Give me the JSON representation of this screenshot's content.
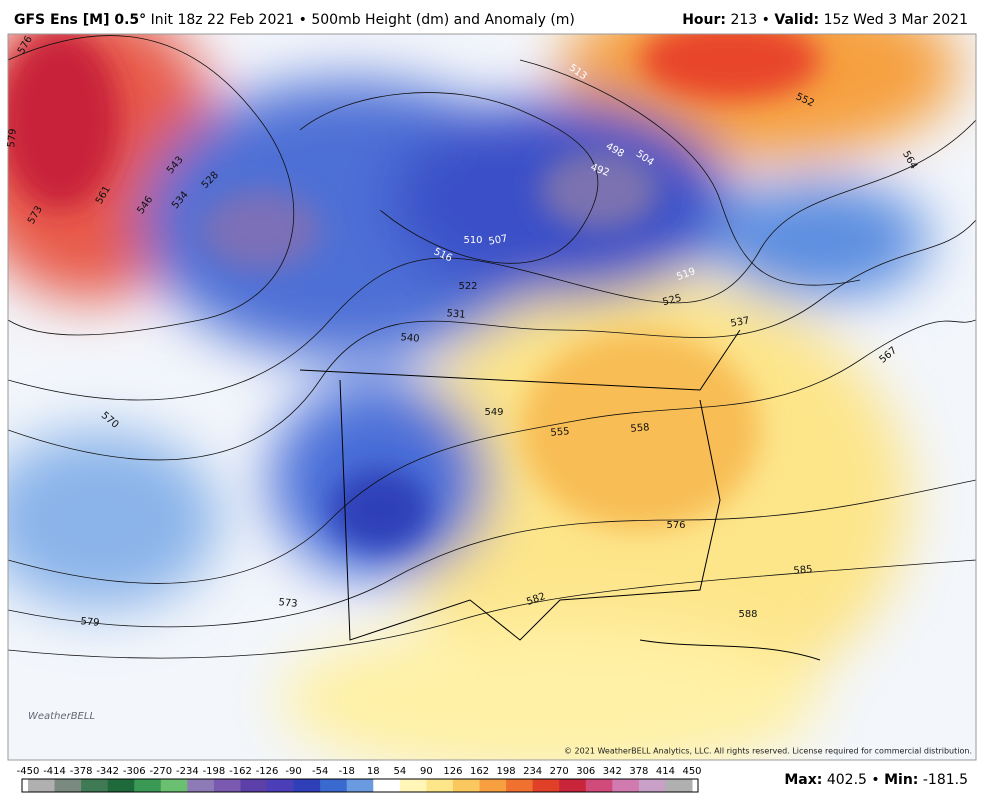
{
  "header": {
    "model": "GFS Ens [M] 0.5°",
    "description": "Init 18z 22 Feb 2021 • 500mb Height (dm) and Anomaly (m)",
    "hour_label": "Hour:",
    "hour": "213",
    "separator": "•",
    "valid_label": "Valid:",
    "valid": "15z Wed 3 Mar 2021"
  },
  "map": {
    "contour_labels": [
      "576",
      "579",
      "573",
      "561",
      "546",
      "543",
      "534",
      "528",
      "516",
      "510",
      "507",
      "498",
      "492",
      "504",
      "513",
      "552",
      "564",
      "519",
      "525",
      "522",
      "531",
      "540",
      "537",
      "567",
      "570",
      "549",
      "555",
      "558",
      "576",
      "585",
      "588",
      "582",
      "573",
      "579"
    ],
    "logo": "WeatherBELL",
    "copyright": "© 2021 WeatherBELL Analytics, LLC. All rights reserved. License required for commercial distribution."
  },
  "colorbar": {
    "ticks": [
      -450,
      -414,
      -378,
      -342,
      -306,
      -270,
      -234,
      -198,
      -162,
      -126,
      -90,
      -54,
      -18,
      18,
      54,
      90,
      126,
      162,
      198,
      234,
      270,
      306,
      342,
      378,
      414,
      450
    ]
  },
  "stats": {
    "max_label": "Max:",
    "max": 402.5,
    "separator": "•",
    "min_label": "Min:",
    "min": -181.5
  }
}
